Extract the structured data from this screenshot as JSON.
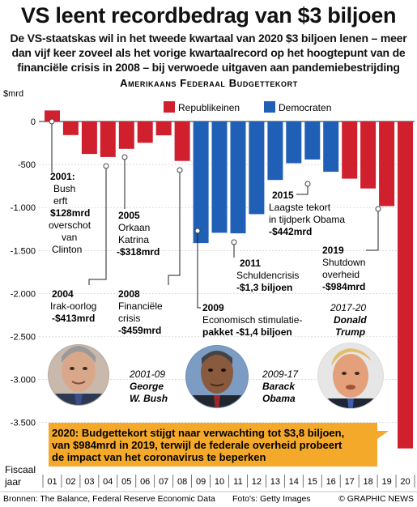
{
  "header": {
    "title": "VS leent recordbedrag van $3 biljoen",
    "subtitle": "De VS-staatskas wil in het tweede kwartaal van 2020 $3 biljoen lenen – meer dan vijf keer zoveel als het vorige kwartaalrecord op het hoogtepunt van de financiële crisis in 2008 – bij verwoede uitgaven aan pandemiebestrijding"
  },
  "chart_data": {
    "type": "bar",
    "title": "Amerikaans Federaal Budgettekort",
    "ylabel": "$mrd",
    "xlabel": "Fiscaal jaar",
    "ylim": [
      -3800,
      150
    ],
    "yticks": [
      0,
      -500,
      -1000,
      -1500,
      -2000,
      -2500,
      -3000,
      -3500
    ],
    "ytick_labels": [
      "0",
      "-500",
      "-1.000",
      "-1.500",
      "-2.000",
      "-2.500",
      "-3.000",
      "-3.500"
    ],
    "categories": [
      "01",
      "02",
      "03",
      "04",
      "05",
      "06",
      "07",
      "08",
      "09",
      "10",
      "11",
      "12",
      "13",
      "14",
      "15",
      "16",
      "17",
      "18",
      "19",
      "20"
    ],
    "values": [
      128,
      -158,
      -378,
      -413,
      -318,
      -248,
      -161,
      -459,
      -1413,
      -1294,
      -1300,
      -1077,
      -680,
      -485,
      -442,
      -585,
      -665,
      -779,
      -984,
      -3800
    ],
    "party": [
      "R",
      "R",
      "R",
      "R",
      "R",
      "R",
      "R",
      "R",
      "D",
      "D",
      "D",
      "D",
      "D",
      "D",
      "D",
      "D",
      "R",
      "R",
      "R",
      "R"
    ],
    "legend": [
      {
        "key": "R",
        "label": "Republikeinen",
        "color": "#d0202e"
      },
      {
        "key": "D",
        "label": "Democraten",
        "color": "#1f5fb5"
      }
    ],
    "legend_position": "top-right",
    "colors": {
      "R": "#d0202e",
      "D": "#1f5fb5",
      "annotation_box": "#f4a92a"
    }
  },
  "annotations": {
    "a2001": {
      "year": "2001:",
      "l1": "Bush",
      "l2": "erft",
      "l3": "$128mrd",
      "l4": "overschot",
      "l5": "van",
      "l6": "Clinton"
    },
    "a2004": {
      "year": "2004",
      "l1": "Irak-oorlog",
      "l2": "-$413mrd"
    },
    "a2005": {
      "year": "2005",
      "l1": "Orkaan",
      "l2": "Katrina",
      "l3": "-$318mrd"
    },
    "a2008": {
      "year": "2008",
      "l1": "Financiële",
      "l2": "crisis",
      "l3": "-$459mrd"
    },
    "a2009": {
      "year": "2009",
      "l1": "Economisch stimulatie-",
      "l2": "pakket -$1,4 biljoen"
    },
    "a2011": {
      "year": "2011",
      "l1": "Schuldencrisis",
      "l2": "-$1,3 biljoen"
    },
    "a2015": {
      "year": "2015",
      "l1": "Laagste tekort",
      "l2": "in tijdperk Obama",
      "l3": "-$442mrd"
    },
    "a2019": {
      "year": "2019",
      "l1": "Shutdown",
      "l2": "overheid",
      "l3": "-$984mrd"
    },
    "a2020": {
      "l1": "2020: Budgettekort stijgt naar verwachting tot $3,8 biljoen,",
      "l2": "van $984mrd in 2019, terwijl de federale overheid probeert",
      "l3": "de impact van het coronavirus te beperken"
    }
  },
  "presidents": [
    {
      "years": "2001-09",
      "first": "George",
      "last": "W. Bush"
    },
    {
      "years": "2009-17",
      "first": "Barack",
      "last": "Obama"
    },
    {
      "years": "2017-20",
      "first": "Donald",
      "last": "Trump"
    }
  ],
  "footer": {
    "sources": "Bronnen: The Balance, Federal Reserve Economic Data",
    "photos": "Foto's: Getty Images",
    "credit": "© GRAPHIC NEWS"
  }
}
